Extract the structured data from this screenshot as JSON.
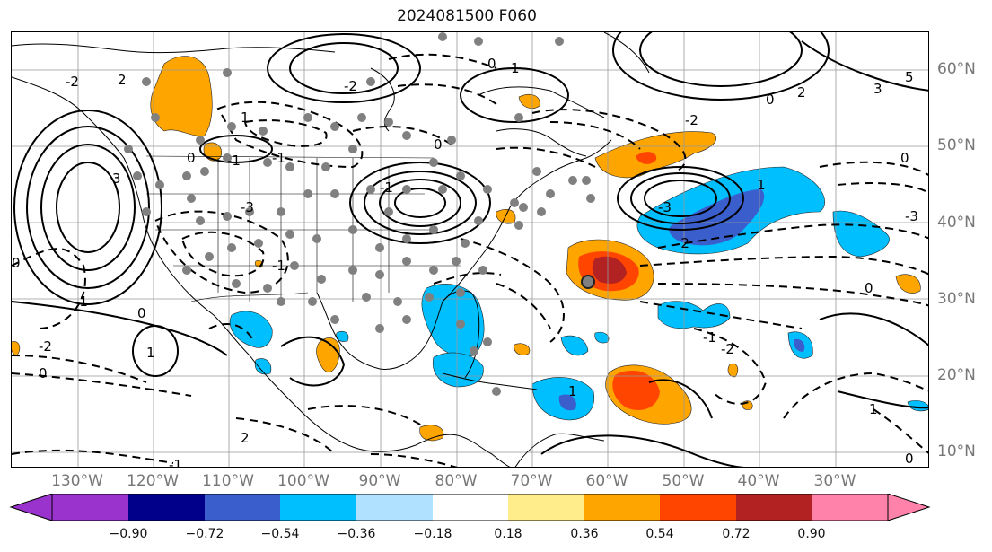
{
  "title": "2024081500 F060",
  "lon_labels": [
    "130°W",
    "120°W",
    "110°W",
    "100°W",
    "90°W",
    "80°W",
    "70°W",
    "60°W",
    "50°W",
    "40°W",
    "30°W"
  ],
  "lat_labels": [
    "60°N",
    "50°N",
    "40°N",
    "30°N",
    "20°N",
    "10°N"
  ],
  "colorbar": {
    "labels": [
      "−0.90",
      "−0.72",
      "−0.54",
      "−0.36",
      "−0.18",
      "0.18",
      "0.36",
      "0.54",
      "0.72",
      "0.90"
    ],
    "colors": [
      "#9a32cd",
      "#00008b",
      "#3a5fcd",
      "#00bfff",
      "#b0e2ff",
      "#ffffff",
      "#ffec8b",
      "#ffa500",
      "#ff4500",
      "#b22222",
      "#ff82ab"
    ]
  },
  "contour_labels": [
    "2",
    "-2",
    "0",
    "-1",
    "1",
    "3",
    "-3",
    "5",
    "-2",
    "0",
    "2",
    "3",
    "0",
    "-1",
    "1",
    "-2",
    "-1",
    "-3",
    "0",
    "0",
    "1",
    "-2",
    "-1",
    "0",
    "-1",
    "0",
    "1",
    "1",
    "0",
    "-2",
    "-3",
    "-1",
    "1",
    "0",
    "-1",
    "2",
    "-2",
    "0"
  ]
}
